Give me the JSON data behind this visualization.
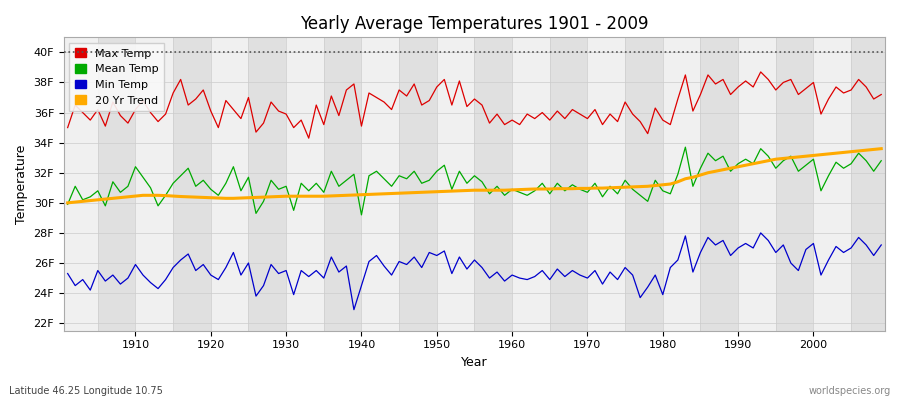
{
  "title": "Yearly Average Temperatures 1901 - 2009",
  "xlabel": "Year",
  "ylabel": "Temperature",
  "footnote_left": "Latitude 46.25 Longitude 10.75",
  "footnote_right": "worldspecies.org",
  "years_start": 1901,
  "years_end": 2009,
  "yticks": [
    22,
    24,
    26,
    28,
    30,
    32,
    34,
    36,
    38,
    40
  ],
  "ylim": [
    21.5,
    41.0
  ],
  "xlim": [
    1900.5,
    2009.5
  ],
  "bg_color": "#ffffff",
  "plot_bg_color": "#e8e8e8",
  "stripe_light": "#f0f0f0",
  "stripe_dark": "#e0e0e0",
  "grid_color": "#cccccc",
  "max_color": "#dd0000",
  "mean_color": "#00aa00",
  "min_color": "#0000cc",
  "trend_color": "#ffaa00",
  "legend_labels": [
    "Max Temp",
    "Mean Temp",
    "Min Temp",
    "20 Yr Trend"
  ],
  "dotted_line_y": 40,
  "max_temps": [
    35.0,
    36.5,
    36.0,
    35.5,
    36.2,
    35.1,
    36.7,
    35.8,
    35.3,
    36.2,
    36.8,
    36.0,
    35.4,
    35.9,
    37.3,
    38.2,
    36.5,
    36.9,
    37.5,
    36.1,
    35.0,
    36.8,
    36.2,
    35.6,
    37.0,
    34.7,
    35.3,
    36.7,
    36.1,
    35.9,
    35.0,
    35.5,
    34.3,
    36.5,
    35.2,
    37.1,
    35.8,
    37.5,
    37.9,
    35.1,
    37.3,
    37.0,
    36.7,
    36.2,
    37.5,
    37.1,
    37.9,
    36.5,
    36.8,
    37.7,
    38.2,
    36.5,
    38.1,
    36.4,
    36.9,
    36.5,
    35.3,
    35.9,
    35.2,
    35.5,
    35.2,
    35.9,
    35.6,
    36.0,
    35.5,
    36.1,
    35.6,
    36.2,
    35.9,
    35.6,
    36.2,
    35.2,
    35.9,
    35.4,
    36.7,
    35.9,
    35.4,
    34.6,
    36.3,
    35.5,
    35.2,
    36.9,
    38.5,
    36.1,
    37.2,
    38.5,
    37.9,
    38.2,
    37.2,
    37.7,
    38.1,
    37.7,
    38.7,
    38.2,
    37.5,
    38.0,
    38.2,
    37.2,
    37.6,
    38.0,
    35.9,
    36.9,
    37.7,
    37.3,
    37.5,
    38.2,
    37.7,
    36.9,
    37.2
  ],
  "mean_temps": [
    29.9,
    31.1,
    30.2,
    30.4,
    30.8,
    29.8,
    31.4,
    30.7,
    31.1,
    32.4,
    31.7,
    31.0,
    29.8,
    30.5,
    31.3,
    31.8,
    32.3,
    31.1,
    31.5,
    30.9,
    30.5,
    31.3,
    32.4,
    30.8,
    31.7,
    29.3,
    30.1,
    31.5,
    30.9,
    31.1,
    29.5,
    31.3,
    30.8,
    31.3,
    30.7,
    32.1,
    31.1,
    31.5,
    31.9,
    29.2,
    31.8,
    32.1,
    31.6,
    31.1,
    31.8,
    31.6,
    32.1,
    31.3,
    31.5,
    32.1,
    32.5,
    30.9,
    32.1,
    31.3,
    31.8,
    31.4,
    30.6,
    31.1,
    30.5,
    30.9,
    30.7,
    30.5,
    30.8,
    31.3,
    30.6,
    31.3,
    30.8,
    31.2,
    30.9,
    30.7,
    31.3,
    30.4,
    31.1,
    30.6,
    31.5,
    30.9,
    30.5,
    30.1,
    31.5,
    30.8,
    30.6,
    31.9,
    33.7,
    31.1,
    32.3,
    33.3,
    32.8,
    33.1,
    32.1,
    32.6,
    32.9,
    32.6,
    33.6,
    33.1,
    32.3,
    32.8,
    33.1,
    32.1,
    32.5,
    32.9,
    30.8,
    31.8,
    32.7,
    32.3,
    32.6,
    33.3,
    32.8,
    32.1,
    32.8
  ],
  "min_temps": [
    25.3,
    24.5,
    24.9,
    24.2,
    25.5,
    24.8,
    25.2,
    24.6,
    25.0,
    25.9,
    25.2,
    24.7,
    24.3,
    24.9,
    25.7,
    26.2,
    26.6,
    25.5,
    25.9,
    25.2,
    24.9,
    25.7,
    26.7,
    25.2,
    26.0,
    23.8,
    24.5,
    25.9,
    25.3,
    25.5,
    23.9,
    25.5,
    25.1,
    25.5,
    25.0,
    26.4,
    25.4,
    25.8,
    22.9,
    24.5,
    26.1,
    26.5,
    25.8,
    25.2,
    26.1,
    25.9,
    26.4,
    25.7,
    26.7,
    26.5,
    26.8,
    25.3,
    26.4,
    25.6,
    26.2,
    25.7,
    25.0,
    25.4,
    24.8,
    25.2,
    25.0,
    24.9,
    25.1,
    25.5,
    24.9,
    25.6,
    25.1,
    25.5,
    25.2,
    25.0,
    25.5,
    24.6,
    25.4,
    24.9,
    25.7,
    25.2,
    23.7,
    24.4,
    25.2,
    23.9,
    25.7,
    26.2,
    27.8,
    25.4,
    26.7,
    27.7,
    27.2,
    27.5,
    26.5,
    27.0,
    27.3,
    27.0,
    28.0,
    27.5,
    26.7,
    27.2,
    26.0,
    25.5,
    26.9,
    27.3,
    25.2,
    26.2,
    27.1,
    26.7,
    27.0,
    27.7,
    27.2,
    26.5,
    27.2
  ],
  "trend_temps": [
    30.0,
    30.05,
    30.1,
    30.15,
    30.2,
    30.25,
    30.3,
    30.35,
    30.4,
    30.45,
    30.5,
    30.5,
    30.5,
    30.48,
    30.45,
    30.42,
    30.4,
    30.38,
    30.36,
    30.34,
    30.32,
    30.3,
    30.3,
    30.32,
    30.34,
    30.36,
    30.38,
    30.4,
    30.42,
    30.44,
    30.44,
    30.44,
    30.44,
    30.44,
    30.44,
    30.46,
    30.48,
    30.5,
    30.52,
    30.54,
    30.56,
    30.58,
    30.6,
    30.62,
    30.64,
    30.66,
    30.68,
    30.7,
    30.72,
    30.74,
    30.76,
    30.78,
    30.8,
    30.82,
    30.84,
    30.84,
    30.84,
    30.84,
    30.84,
    30.86,
    30.88,
    30.9,
    30.92,
    30.92,
    30.92,
    30.94,
    30.94,
    30.94,
    30.96,
    30.96,
    30.98,
    30.98,
    31.0,
    31.02,
    31.04,
    31.06,
    31.08,
    31.1,
    31.15,
    31.2,
    31.25,
    31.4,
    31.6,
    31.7,
    31.85,
    32.0,
    32.1,
    32.2,
    32.3,
    32.4,
    32.5,
    32.6,
    32.7,
    32.8,
    32.9,
    32.95,
    33.0,
    33.05,
    33.1,
    33.15,
    33.2,
    33.25,
    33.3,
    33.35,
    33.4,
    33.45,
    33.5,
    33.55,
    33.6
  ]
}
